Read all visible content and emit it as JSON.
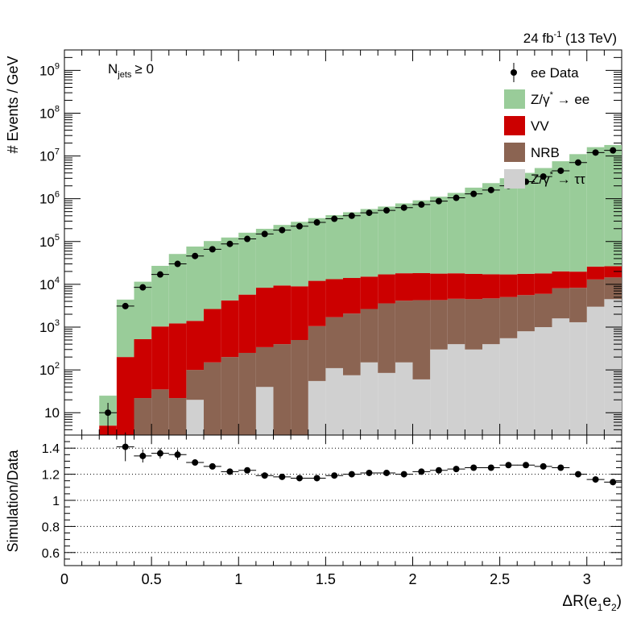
{
  "header": {
    "lumi_label": "24 fb",
    "lumi_sup": "-1",
    "energy_label": " (13 TeV)"
  },
  "annotation": {
    "njets_main": "N",
    "njets_sub": "jets",
    "njets_cond": "≥ 0"
  },
  "axes": {
    "top_ylabel": "# Events / GeV",
    "bottom_ylabel": "Simulation/Data",
    "xlabel_prefix": "ΔR(e",
    "xlabel_sub1": "1",
    "xlabel_mid": "e",
    "xlabel_sub2": "2",
    "xlabel_suffix": ")"
  },
  "chart_data": [
    {
      "type": "bar",
      "stacked": true,
      "ylog": true,
      "xlim": [
        0,
        3.2
      ],
      "ylim": [
        3,
        3000000000
      ],
      "x_bin_edges": [
        0.2,
        0.3,
        0.4,
        0.5,
        0.6,
        0.7,
        0.8,
        0.9,
        1.0,
        1.1,
        1.2,
        1.3,
        1.4,
        1.5,
        1.6,
        1.7,
        1.8,
        1.9,
        2.0,
        2.1,
        2.2,
        2.3,
        2.4,
        2.5,
        2.6,
        2.7,
        2.8,
        2.9,
        3.0,
        3.1,
        3.2
      ],
      "x_ticks": [
        "0",
        "0.5",
        "1",
        "1.5",
        "2",
        "2.5",
        "3"
      ],
      "x_tick_values": [
        0,
        0.5,
        1,
        1.5,
        2,
        2.5,
        3
      ],
      "y_ticks": [
        {
          "value": 10,
          "base": "10",
          "exp": ""
        },
        {
          "value": 100,
          "base": "10",
          "exp": "2"
        },
        {
          "value": 1000,
          "base": "10",
          "exp": "3"
        },
        {
          "value": 10000,
          "base": "10",
          "exp": "4"
        },
        {
          "value": 100000,
          "base": "10",
          "exp": "5"
        },
        {
          "value": 1000000,
          "base": "10",
          "exp": "6"
        },
        {
          "value": 10000000,
          "base": "10",
          "exp": "7"
        },
        {
          "value": 100000000,
          "base": "10",
          "exp": "8"
        },
        {
          "value": 1000000000,
          "base": "10",
          "exp": "9"
        }
      ],
      "series": [
        {
          "name": "Z/γ → ττ",
          "key": "ztautau",
          "color": "#d0d0d0",
          "values": [
            0,
            0,
            0,
            0,
            0,
            20,
            0,
            0,
            0,
            40,
            0,
            0,
            55,
            110,
            75,
            150,
            85,
            150,
            60,
            300,
            400,
            300,
            400,
            550,
            800,
            1000,
            1600,
            1300,
            3000,
            4500
          ]
        },
        {
          "name": "NRB",
          "key": "nrb",
          "color": "#8b6452",
          "values": [
            0,
            0,
            22,
            35,
            22,
            80,
            150,
            200,
            250,
            300,
            400,
            500,
            1000,
            1600,
            2000,
            2500,
            3500,
            4000,
            4200,
            4000,
            4200,
            4200,
            4300,
            4500,
            4800,
            5000,
            6500,
            7000,
            10000,
            10000
          ]
        },
        {
          "name": "VV",
          "key": "vv",
          "color": "#cc0000",
          "values": [
            5,
            200,
            500,
            1000,
            1200,
            1300,
            2500,
            4000,
            5500,
            8000,
            9000,
            8500,
            11000,
            11500,
            12000,
            12500,
            13500,
            14000,
            14000,
            13500,
            13500,
            13000,
            12500,
            12000,
            12000,
            12000,
            12000,
            11500,
            13000,
            12000
          ]
        },
        {
          "name": "Z/γ* → ee",
          "key": "zee",
          "color": "#99cc99",
          "values": [
            20,
            4200,
            11000,
            26000,
            50000,
            75000,
            100000,
            120000,
            155000,
            190000,
            235000,
            280000,
            340000,
            400000,
            470000,
            560000,
            640000,
            760000,
            900000,
            1100000,
            1350000,
            1800000,
            2300000,
            3000000,
            4000000,
            5200000,
            7500000,
            11000000,
            16000000,
            18000000
          ]
        }
      ],
      "data": {
        "name": "ee Data",
        "x": [
          0.25,
          0.35,
          0.45,
          0.55,
          0.65,
          0.75,
          0.85,
          0.95,
          1.05,
          1.15,
          1.25,
          1.35,
          1.45,
          1.55,
          1.65,
          1.75,
          1.85,
          1.95,
          2.05,
          2.15,
          2.25,
          2.35,
          2.45,
          2.55,
          2.65,
          2.75,
          2.85,
          2.95,
          3.05,
          3.15
        ],
        "y": [
          10,
          3100,
          8500,
          17000,
          30000,
          46000,
          66000,
          88000,
          115000,
          150000,
          185000,
          228000,
          280000,
          340000,
          400000,
          470000,
          535000,
          620000,
          730000,
          880000,
          1050000,
          1300000,
          1600000,
          2000000,
          2500000,
          3300000,
          4500000,
          7000000,
          12000000,
          13500000
        ],
        "yerr_rel": [
          0.7,
          0.03,
          0,
          0,
          0,
          0,
          0,
          0,
          0,
          0,
          0,
          0,
          0,
          0,
          0,
          0,
          0,
          0,
          0,
          0,
          0,
          0,
          0,
          0,
          0,
          0,
          0,
          0,
          0,
          0
        ]
      },
      "legend": [
        {
          "label": "ee Data",
          "kind": "marker"
        },
        {
          "label": "Z/γ",
          "sup": "*",
          "tail": " → ee",
          "kind": "box",
          "color": "#99cc99"
        },
        {
          "label": "VV",
          "kind": "box",
          "color": "#cc0000"
        },
        {
          "label": "NRB",
          "kind": "box",
          "color": "#8b6452"
        },
        {
          "label": "Z/γ",
          "sup": "*",
          "tail": " → ττ",
          "kind": "box",
          "color": "#d0d0d0"
        }
      ],
      "legend_position": "top-right"
    },
    {
      "type": "scatter",
      "xlim": [
        0,
        3.2
      ],
      "ylim": [
        0.5,
        1.5
      ],
      "y_ticks": [
        "0.6",
        "0.8",
        "1",
        "1.2",
        "1.4"
      ],
      "y_tick_values": [
        0.6,
        0.8,
        1.0,
        1.2,
        1.4
      ],
      "grid_y": [
        0.6,
        0.8,
        1.0,
        1.2,
        1.4
      ],
      "x": [
        0.35,
        0.45,
        0.55,
        0.65,
        0.75,
        0.85,
        0.95,
        1.05,
        1.15,
        1.25,
        1.35,
        1.45,
        1.55,
        1.65,
        1.75,
        1.85,
        1.95,
        2.05,
        2.15,
        2.25,
        2.35,
        2.45,
        2.55,
        2.65,
        2.75,
        2.85,
        2.95,
        3.05,
        3.15
      ],
      "y": [
        1.41,
        1.34,
        1.36,
        1.35,
        1.29,
        1.26,
        1.22,
        1.23,
        1.19,
        1.18,
        1.17,
        1.17,
        1.19,
        1.2,
        1.21,
        1.21,
        1.2,
        1.22,
        1.23,
        1.24,
        1.25,
        1.25,
        1.27,
        1.27,
        1.26,
        1.25,
        1.2,
        1.16,
        1.14
      ],
      "yerr": [
        0.11,
        0.05,
        0.04,
        0.04,
        0.02,
        0.01,
        0.01,
        0.01,
        0.01,
        0.01,
        0.01,
        0.01,
        0.01,
        0.01,
        0.01,
        0.01,
        0.01,
        0.01,
        0.01,
        0.01,
        0.01,
        0.01,
        0.01,
        0.01,
        0.01,
        0.01,
        0.01,
        0.01,
        0.01
      ]
    }
  ]
}
